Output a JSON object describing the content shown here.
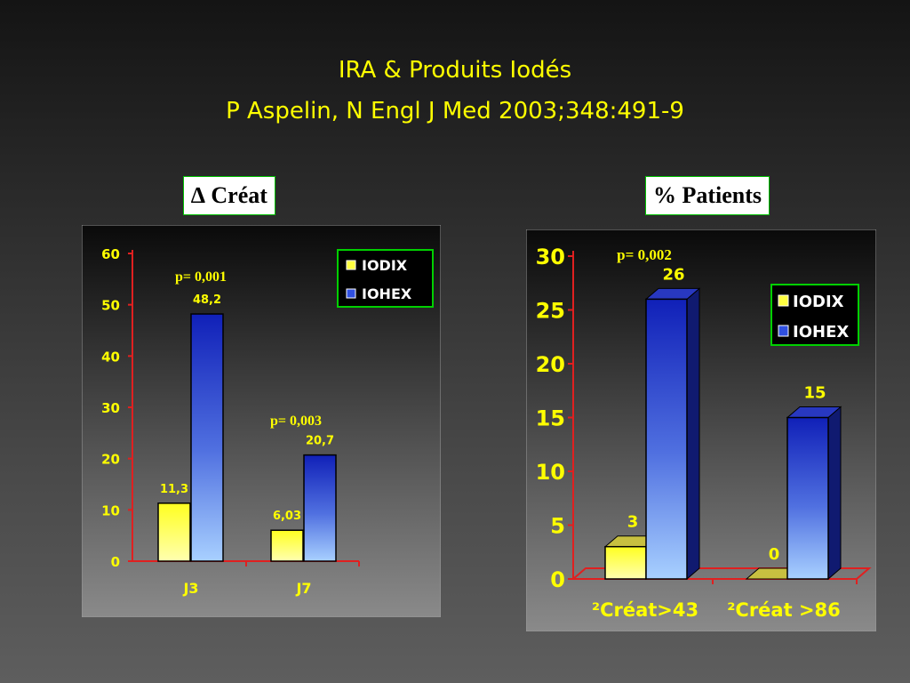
{
  "slide": {
    "title_line1": "IRA & Produits Iodés",
    "title_line2": "P Aspelin, N Engl J Med 2003;348:491-9"
  },
  "panels": {
    "left_label": "∆ Créat",
    "right_label": "% Patients"
  },
  "colors": {
    "title": "#ffff00",
    "iodix": "#ffff30",
    "iohex": "#2030c0",
    "axis": "#e02020",
    "label_box_border": "#00c000"
  },
  "chart_data": [
    {
      "type": "bar",
      "categories": [
        "J3",
        "J7"
      ],
      "series": [
        {
          "name": "IODIX",
          "values": [
            11.3,
            6.03
          ],
          "labels": [
            "11,3",
            "6,03"
          ]
        },
        {
          "name": "IOHEX",
          "values": [
            48.2,
            20.7
          ],
          "labels": [
            "48,2",
            "20,7"
          ]
        }
      ],
      "ylim": [
        0,
        60
      ],
      "yticks": [
        "0",
        "10",
        "20",
        "30",
        "40",
        "50",
        "60"
      ],
      "annotations": [
        "p= 0,001",
        "p= 0,003"
      ],
      "legend_position": "top-right",
      "grid": false
    },
    {
      "type": "bar",
      "categories": [
        "²Créat>43",
        "²Créat >86"
      ],
      "series": [
        {
          "name": "IODIX",
          "values": [
            3,
            0
          ],
          "labels": [
            "3",
            "0"
          ]
        },
        {
          "name": "IOHEX",
          "values": [
            26,
            15
          ],
          "labels": [
            "26",
            "15"
          ]
        }
      ],
      "ylim": [
        0,
        30
      ],
      "yticks": [
        "0",
        "5",
        "10",
        "15",
        "20",
        "25",
        "30"
      ],
      "annotations": [
        "p= 0,002"
      ],
      "legend_position": "top-right",
      "grid": false,
      "style": "3d"
    }
  ]
}
